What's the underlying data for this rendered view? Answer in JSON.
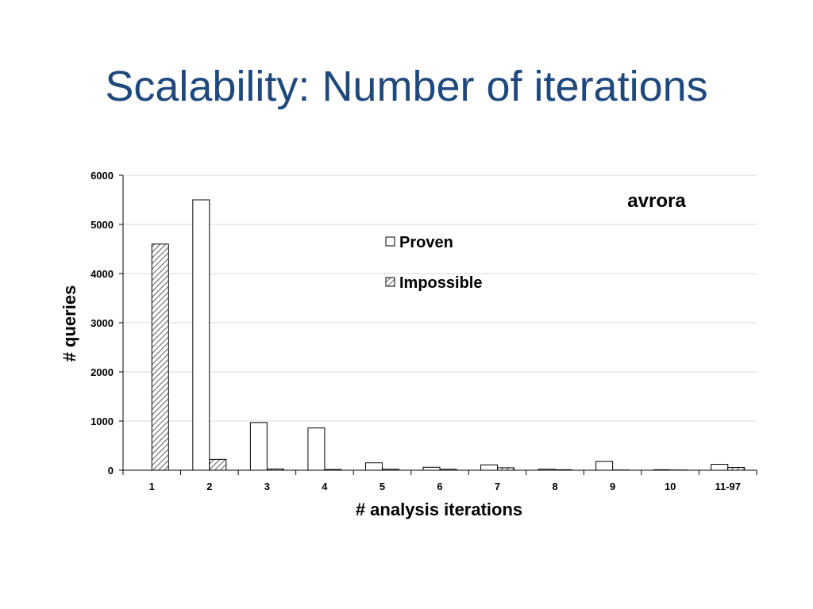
{
  "slide": {
    "title": "Scalability: Number of iterations"
  },
  "colors": {
    "title": "#1F497D",
    "bar_edge": "#000000",
    "proven_fill": "#ffffff",
    "grid": "#d9d9d9"
  },
  "chart_data": {
    "type": "bar",
    "title": "",
    "annotation": "avrora",
    "xlabel": "# analysis iterations",
    "ylabel": "# queries",
    "ylim": [
      0,
      6000
    ],
    "yticks": [
      "0",
      "1000",
      "2000",
      "3000",
      "4000",
      "5000",
      "6000"
    ],
    "grid": true,
    "legend_position": "upper-center",
    "categories": [
      "1",
      "2",
      "3",
      "4",
      "5",
      "6",
      "7",
      "8",
      "9",
      "10",
      "11-97"
    ],
    "series": [
      {
        "name": "Proven",
        "pattern": "solid-white",
        "values": [
          0,
          5500,
          970,
          860,
          150,
          60,
          110,
          20,
          180,
          10,
          120
        ]
      },
      {
        "name": "Impossible",
        "pattern": "diagonal-hatch",
        "values": [
          4600,
          220,
          25,
          15,
          20,
          20,
          50,
          10,
          5,
          5,
          55
        ]
      }
    ]
  }
}
